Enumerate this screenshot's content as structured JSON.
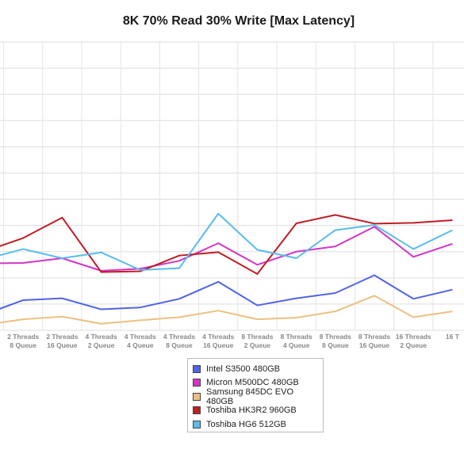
{
  "chart_data": {
    "type": "line",
    "title": "8K 70% Read 30% Write [Max Latency]",
    "xlabel": "",
    "ylabel": "",
    "grid": true,
    "legend_position": "bottom",
    "categories": [
      [
        "Threads",
        "Queue"
      ],
      [
        "2 Threads",
        "8 Queue"
      ],
      [
        "2 Threads",
        "16 Queue"
      ],
      [
        "4 Threads",
        "2 Queue"
      ],
      [
        "4 Threads",
        "4 Queue"
      ],
      [
        "4 Threads",
        "8 Queue"
      ],
      [
        "4 Threads",
        "16 Queue"
      ],
      [
        "8 Threads",
        "2 Queue"
      ],
      [
        "8 Threads",
        "4 Queue"
      ],
      [
        "8 Threads",
        "8 Queue"
      ],
      [
        "8 Threads",
        "16 Queue"
      ],
      [
        "16 Threads",
        "2 Queue"
      ],
      [
        "16 T",
        ""
      ]
    ],
    "ylim": [
      0,
      11
    ],
    "series": [
      {
        "name": "Intel S3500 480GB",
        "color": "#4f64e6",
        "values": [
          0.6,
          1.15,
          1.22,
          0.8,
          0.87,
          1.2,
          1.85,
          0.95,
          1.22,
          1.42,
          2.1,
          1.2,
          1.55
        ]
      },
      {
        "name": "Micron M500DC 480GB",
        "color": "#d234c6",
        "values": [
          2.55,
          2.57,
          2.75,
          2.27,
          2.35,
          2.65,
          3.32,
          2.5,
          3.0,
          3.2,
          3.95,
          2.8,
          3.3
        ]
      },
      {
        "name": "Samsung 845DC EVO 480GB",
        "color": "#ecc080",
        "values": [
          0.2,
          0.42,
          0.52,
          0.25,
          0.38,
          0.5,
          0.75,
          0.42,
          0.48,
          0.72,
          1.32,
          0.5,
          0.72
        ]
      },
      {
        "name": "Toshiba HK3R2 960GB",
        "color": "#c01d24",
        "values": [
          3.0,
          3.52,
          4.3,
          2.22,
          2.25,
          2.85,
          2.98,
          2.15,
          4.08,
          4.4,
          4.07,
          4.1,
          4.2
        ]
      },
      {
        "name": "Toshiba HG6 512GB",
        "color": "#58bcec",
        "values": [
          2.7,
          3.1,
          2.75,
          2.97,
          2.3,
          2.37,
          4.45,
          3.07,
          2.75,
          3.82,
          4.02,
          3.1,
          3.82
        ]
      }
    ]
  }
}
